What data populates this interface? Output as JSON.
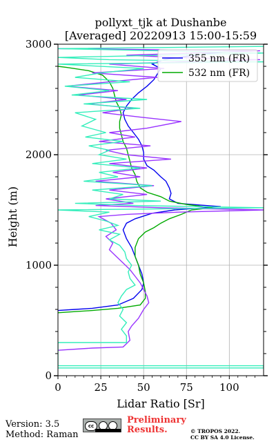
{
  "chart_data": {
    "type": "line",
    "title": "pollyxt_tjk at Dushanbe",
    "subtitle": "[Averaged] 20220913 15:00-15:59",
    "xlabel": "Lidar Ratio [Sr]",
    "ylabel": "Height (m)",
    "xlim": [
      0,
      120
    ],
    "ylim": [
      0,
      3000
    ],
    "x_ticks": [
      0,
      25,
      50,
      75,
      100
    ],
    "y_ticks": [
      0,
      1000,
      2000,
      3000
    ],
    "grid": true,
    "legend": "top-right",
    "series": [
      {
        "name": "355 nm (FR)",
        "color": "#0000ee",
        "in_legend": true,
        "points": [
          [
            0,
            590
          ],
          [
            10,
            600
          ],
          [
            20,
            610
          ],
          [
            35,
            640
          ],
          [
            44,
            700
          ],
          [
            49,
            780
          ],
          [
            50,
            840
          ],
          [
            49,
            920
          ],
          [
            47,
            1000
          ],
          [
            45,
            1080
          ],
          [
            43,
            1160
          ],
          [
            40,
            1240
          ],
          [
            38,
            1320
          ],
          [
            40,
            1380
          ],
          [
            45,
            1420
          ],
          [
            55,
            1470
          ],
          [
            68,
            1500
          ],
          [
            95,
            1530
          ],
          [
            70,
            1560
          ],
          [
            65,
            1600
          ],
          [
            66,
            1650
          ],
          [
            65,
            1700
          ],
          [
            63,
            1760
          ],
          [
            60,
            1800
          ],
          [
            56,
            1860
          ],
          [
            52,
            1900
          ],
          [
            50,
            1960
          ],
          [
            50,
            2020
          ],
          [
            49,
            2080
          ],
          [
            47,
            2140
          ],
          [
            44,
            2200
          ],
          [
            41,
            2260
          ],
          [
            39,
            2320
          ],
          [
            38,
            2380
          ],
          [
            40,
            2440
          ],
          [
            43,
            2500
          ],
          [
            47,
            2560
          ],
          [
            52,
            2620
          ],
          [
            56,
            2680
          ],
          [
            58,
            2730
          ],
          [
            60,
            2780
          ],
          [
            55,
            2820
          ],
          [
            62,
            2860
          ],
          [
            70,
            2880
          ],
          [
            80,
            2900
          ],
          [
            90,
            2920
          ],
          [
            100,
            2930
          ]
        ]
      },
      {
        "name": "532 nm (FR)",
        "color": "#00aa00",
        "in_legend": true,
        "points": [
          [
            0,
            570
          ],
          [
            10,
            580
          ],
          [
            20,
            590
          ],
          [
            35,
            610
          ],
          [
            48,
            640
          ],
          [
            51,
            700
          ],
          [
            51,
            760
          ],
          [
            50,
            840
          ],
          [
            48,
            920
          ],
          [
            47,
            1000
          ],
          [
            45,
            1080
          ],
          [
            45,
            1160
          ],
          [
            47,
            1240
          ],
          [
            51,
            1300
          ],
          [
            56,
            1340
          ],
          [
            60,
            1380
          ],
          [
            65,
            1420
          ],
          [
            72,
            1460
          ],
          [
            78,
            1500
          ],
          [
            90,
            1520
          ],
          [
            75,
            1550
          ],
          [
            65,
            1580
          ],
          [
            60,
            1620
          ],
          [
            52,
            1660
          ],
          [
            48,
            1700
          ],
          [
            46,
            1760
          ],
          [
            45,
            1820
          ],
          [
            43,
            1880
          ],
          [
            42,
            1940
          ],
          [
            41,
            2000
          ],
          [
            40,
            2060
          ],
          [
            38,
            2120
          ],
          [
            37,
            2180
          ],
          [
            36,
            2240
          ],
          [
            36,
            2300
          ],
          [
            37,
            2360
          ],
          [
            36,
            2420
          ],
          [
            34,
            2480
          ],
          [
            33,
            2540
          ],
          [
            32,
            2600
          ],
          [
            30,
            2660
          ],
          [
            26,
            2720
          ],
          [
            18,
            2760
          ],
          [
            5,
            2790
          ],
          [
            0,
            2800
          ]
        ]
      },
      {
        "name": "",
        "color": "#9933ff",
        "in_legend": false,
        "points": [
          [
            0,
            230
          ],
          [
            20,
            250
          ],
          [
            38,
            260
          ],
          [
            42,
            320
          ],
          [
            41,
            400
          ],
          [
            43,
            450
          ],
          [
            47,
            520
          ],
          [
            50,
            600
          ],
          [
            53,
            660
          ],
          [
            52,
            720
          ],
          [
            50,
            780
          ],
          [
            48,
            840
          ],
          [
            45,
            900
          ],
          [
            42,
            960
          ],
          [
            38,
            1020
          ],
          [
            34,
            1080
          ],
          [
            30,
            1140
          ],
          [
            32,
            1200
          ],
          [
            28,
            1260
          ],
          [
            34,
            1320
          ],
          [
            31,
            1380
          ],
          [
            24,
            1440
          ],
          [
            40,
            1460
          ],
          [
            70,
            1480
          ],
          [
            120,
            1500
          ],
          [
            60,
            1520
          ],
          [
            22,
            1540
          ],
          [
            44,
            1560
          ],
          [
            28,
            1600
          ],
          [
            52,
            1640
          ],
          [
            30,
            1680
          ],
          [
            56,
            1720
          ],
          [
            22,
            1760
          ],
          [
            48,
            1800
          ],
          [
            32,
            1840
          ],
          [
            52,
            1880
          ],
          [
            30,
            1920
          ],
          [
            66,
            1960
          ],
          [
            40,
            2000
          ],
          [
            28,
            2040
          ],
          [
            54,
            2080
          ],
          [
            24,
            2120
          ],
          [
            45,
            2160
          ],
          [
            30,
            2200
          ],
          [
            52,
            2240
          ],
          [
            72,
            2300
          ],
          [
            48,
            2340
          ],
          [
            26,
            2380
          ],
          [
            44,
            2420
          ],
          [
            18,
            2460
          ],
          [
            40,
            2500
          ],
          [
            12,
            2540
          ],
          [
            35,
            2580
          ],
          [
            5,
            2620
          ],
          [
            30,
            2660
          ],
          [
            58,
            2700
          ],
          [
            20,
            2740
          ],
          [
            62,
            2780
          ],
          [
            30,
            2820
          ],
          [
            118,
            2860
          ],
          [
            70,
            2880
          ],
          [
            40,
            2900
          ],
          [
            118,
            2940
          ],
          [
            0,
            2960
          ]
        ]
      },
      {
        "name": "",
        "color": "#33eebb",
        "in_legend": false,
        "points": [
          [
            0,
            70
          ],
          [
            120,
            70
          ],
          [
            120,
            90
          ],
          [
            0,
            90
          ],
          [
            0,
            300
          ],
          [
            40,
            300
          ],
          [
            40,
            360
          ],
          [
            37,
            420
          ],
          [
            40,
            480
          ],
          [
            36,
            540
          ],
          [
            38,
            600
          ],
          [
            35,
            660
          ],
          [
            37,
            720
          ],
          [
            40,
            780
          ],
          [
            45,
            820
          ],
          [
            42,
            880
          ],
          [
            41,
            940
          ],
          [
            43,
            1000
          ],
          [
            40,
            1060
          ],
          [
            39,
            1120
          ],
          [
            36,
            1180
          ],
          [
            30,
            1230
          ],
          [
            36,
            1280
          ],
          [
            24,
            1320
          ],
          [
            35,
            1360
          ],
          [
            28,
            1400
          ],
          [
            18,
            1440
          ],
          [
            30,
            1480
          ],
          [
            0,
            1500
          ],
          [
            120,
            1520
          ],
          [
            45,
            1540
          ],
          [
            10,
            1560
          ],
          [
            60,
            1580
          ],
          [
            30,
            1600
          ],
          [
            38,
            1640
          ],
          [
            20,
            1680
          ],
          [
            55,
            1720
          ],
          [
            15,
            1760
          ],
          [
            35,
            1800
          ],
          [
            24,
            1840
          ],
          [
            48,
            1880
          ],
          [
            20,
            1920
          ],
          [
            40,
            1960
          ],
          [
            24,
            2000
          ],
          [
            30,
            2040
          ],
          [
            18,
            2080
          ],
          [
            38,
            2120
          ],
          [
            16,
            2160
          ],
          [
            28,
            2200
          ],
          [
            14,
            2260
          ],
          [
            22,
            2320
          ],
          [
            10,
            2380
          ],
          [
            48,
            2420
          ],
          [
            15,
            2460
          ],
          [
            52,
            2500
          ],
          [
            8,
            2540
          ],
          [
            30,
            2580
          ],
          [
            4,
            2620
          ],
          [
            42,
            2660
          ],
          [
            10,
            2700
          ],
          [
            25,
            2740
          ],
          [
            50,
            2780
          ],
          [
            0,
            2820
          ],
          [
            120,
            2840
          ],
          [
            30,
            2860
          ],
          [
            0,
            2880
          ],
          [
            120,
            2920
          ],
          [
            0,
            2960
          ],
          [
            120,
            2980
          ]
        ]
      }
    ]
  },
  "footer": {
    "version": "Version: 3.5",
    "method": "Method: Raman",
    "license_badge": "cc",
    "preliminary_line1": "Preliminary",
    "preliminary_line2": "Results.",
    "copyright_line1": "© TROPOS 2022.",
    "copyright_line2": "CC BY SA 4.0 License."
  }
}
